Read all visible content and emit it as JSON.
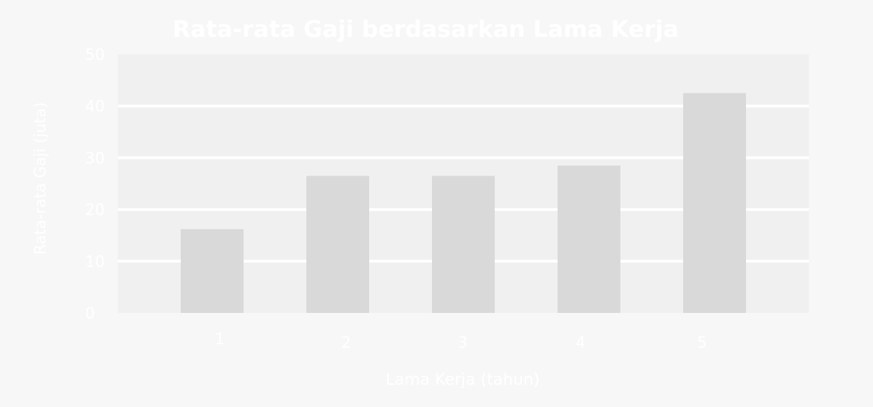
{
  "chart_data": {
    "type": "bar",
    "title": "Rata-rata Gaji berdasarkan Lama Kerja",
    "xlabel": "Lama Kerja (tahun)",
    "ylabel": "Rata-rata Gaji (juta)",
    "categories": [
      "1",
      "2",
      "3",
      "4",
      "5"
    ],
    "values": [
      16.2,
      26.5,
      26.5,
      28.5,
      42.5
    ],
    "ylim": [
      0,
      50
    ],
    "yticks": [
      0,
      10,
      20,
      30,
      40,
      50
    ],
    "grid": true,
    "legend": "none"
  },
  "colors": {
    "background": "#f7f7f7",
    "plot_background": "#f0f0f0",
    "bar": "#d9d9d9",
    "grid": "#ffffff",
    "text": "#ffffff"
  }
}
